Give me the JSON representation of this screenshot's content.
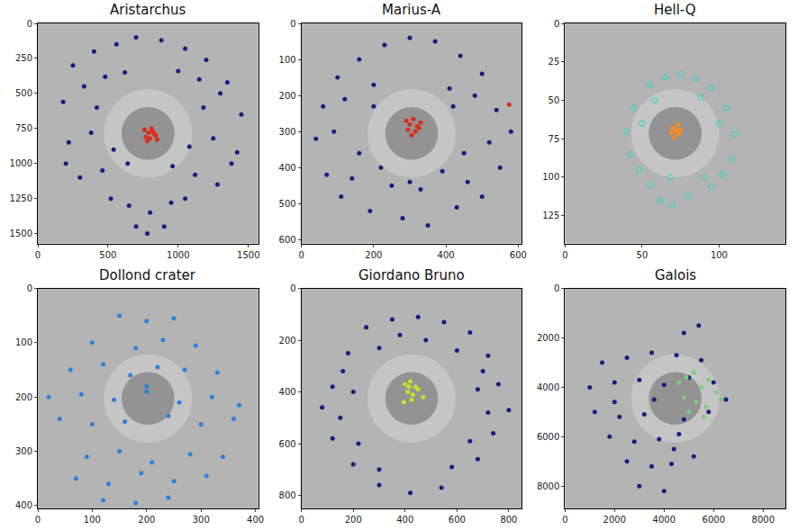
{
  "chart_data": [
    {
      "type": "scatter",
      "title": "Aristarchus",
      "xlim": [
        0,
        1570
      ],
      "ylim": [
        1570,
        0
      ],
      "xticks": [
        0,
        500,
        1000,
        1500
      ],
      "yticks": [
        0,
        250,
        500,
        750,
        1000,
        1250,
        1500
      ],
      "series": [
        {
          "color": "#1c1c80",
          "marker": "circle",
          "x": [
            250,
            400,
            560,
            700,
            880,
            1050,
            1200,
            1350,
            180,
            330,
            480,
            620,
            1000,
            1150,
            1300,
            1450,
            220,
            380,
            540,
            1080,
            1250,
            1420,
            300,
            460,
            640,
            960,
            1120,
            1280,
            650,
            800,
            950,
            520,
            1050,
            900,
            700,
            200,
            1380,
            420,
            1180,
            780
          ],
          "y": [
            300,
            200,
            150,
            100,
            120,
            180,
            260,
            420,
            560,
            450,
            380,
            350,
            340,
            400,
            500,
            650,
            850,
            780,
            900,
            880,
            820,
            920,
            1100,
            1050,
            1000,
            1020,
            1080,
            1150,
            1300,
            1350,
            1280,
            1250,
            1250,
            1450,
            1450,
            1000,
            1000,
            600,
            600,
            1500
          ]
        },
        {
          "color": "#e02a1f",
          "marker": "circle",
          "x": [
            760,
            790,
            820,
            840,
            800,
            770,
            810,
            850,
            780,
            830
          ],
          "y": [
            760,
            780,
            770,
            800,
            820,
            810,
            750,
            830,
            840,
            790
          ]
        }
      ]
    },
    {
      "type": "scatter",
      "title": "Marius-A",
      "xlim": [
        0,
        610
      ],
      "ylim": [
        610,
        0
      ],
      "xticks": [
        0,
        200,
        400,
        600
      ],
      "yticks": [
        0,
        100,
        200,
        300,
        400,
        500,
        600
      ],
      "series": [
        {
          "color": "#1c1c80",
          "marker": "circle",
          "x": [
            100,
            160,
            230,
            300,
            370,
            440,
            500,
            60,
            120,
            200,
            410,
            480,
            540,
            40,
            90,
            200,
            420,
            520,
            580,
            70,
            140,
            220,
            390,
            460,
            550,
            110,
            190,
            280,
            350,
            430,
            500,
            250,
            330,
            160,
            450,
            300
          ],
          "y": [
            150,
            100,
            60,
            40,
            50,
            90,
            140,
            230,
            210,
            170,
            180,
            200,
            240,
            320,
            300,
            230,
            230,
            330,
            300,
            420,
            430,
            400,
            410,
            440,
            400,
            480,
            520,
            540,
            560,
            510,
            480,
            450,
            460,
            360,
            360,
            440
          ]
        },
        {
          "color": "#e02a1f",
          "marker": "circle",
          "x": [
            290,
            300,
            310,
            320,
            330,
            295,
            315,
            325,
            305,
            575
          ],
          "y": [
            270,
            280,
            265,
            285,
            275,
            295,
            300,
            290,
            310,
            225
          ]
        }
      ]
    },
    {
      "type": "scatter",
      "title": "Hell-Q",
      "xlim": [
        0,
        143
      ],
      "ylim": [
        143,
        0
      ],
      "xticks": [
        0,
        50,
        100
      ],
      "yticks": [
        0,
        25,
        50,
        75,
        100,
        125
      ],
      "series": [
        {
          "color": "#3cd6be",
          "marker": "circle-open",
          "x": [
            55,
            65,
            75,
            85,
            95,
            45,
            105,
            40,
            110,
            42,
            108,
            48,
            102,
            55,
            95,
            62,
            70,
            80,
            90,
            50,
            100,
            58,
            88,
            68
          ],
          "y": [
            40,
            35,
            33,
            36,
            42,
            55,
            55,
            70,
            72,
            85,
            88,
            95,
            98,
            105,
            106,
            115,
            118,
            112,
            100,
            65,
            65,
            50,
            48,
            100
          ]
        },
        {
          "color": "#ff8a1a",
          "marker": "circle",
          "x": [
            70,
            72,
            74,
            71,
            73,
            69,
            75
          ],
          "y": [
            68,
            70,
            72,
            74,
            66,
            71,
            69
          ]
        }
      ]
    },
    {
      "type": "scatter",
      "title": "Dollond crater",
      "xlim": [
        0,
        405
      ],
      "ylim": [
        405,
        0
      ],
      "xticks": [
        0,
        100,
        200,
        300,
        400
      ],
      "yticks": [
        0,
        100,
        200,
        300,
        400
      ],
      "series": [
        {
          "color": "#2f80d8",
          "marker": "circle",
          "x": [
            150,
            200,
            250,
            100,
            180,
            230,
            290,
            60,
            120,
            170,
            220,
            270,
            330,
            20,
            80,
            140,
            200,
            260,
            320,
            370,
            40,
            100,
            160,
            240,
            300,
            360,
            90,
            150,
            210,
            280,
            340,
            70,
            130,
            190,
            250,
            310,
            120,
            180,
            240,
            200
          ],
          "y": [
            50,
            60,
            55,
            100,
            110,
            95,
            105,
            150,
            140,
            160,
            145,
            150,
            155,
            200,
            195,
            205,
            190,
            210,
            200,
            215,
            240,
            250,
            245,
            235,
            250,
            240,
            310,
            300,
            320,
            305,
            310,
            350,
            360,
            340,
            355,
            345,
            390,
            395,
            385,
            180
          ]
        }
      ]
    },
    {
      "type": "scatter",
      "title": "Giordano Bruno",
      "xlim": [
        0,
        850
      ],
      "ylim": [
        850,
        0
      ],
      "xticks": [
        0,
        200,
        400,
        600,
        800
      ],
      "yticks": [
        0,
        200,
        400,
        600,
        800
      ],
      "series": [
        {
          "color": "#1c1c80",
          "marker": "circle",
          "x": [
            250,
            350,
            450,
            550,
            650,
            180,
            300,
            600,
            720,
            120,
            200,
            680,
            760,
            80,
            150,
            720,
            800,
            120,
            220,
            650,
            740,
            200,
            300,
            580,
            680,
            300,
            420,
            540,
            380,
            480,
            160,
            700
          ],
          "y": [
            150,
            120,
            110,
            130,
            170,
            250,
            230,
            240,
            260,
            380,
            400,
            390,
            370,
            460,
            500,
            480,
            470,
            580,
            600,
            590,
            560,
            680,
            700,
            690,
            660,
            760,
            790,
            770,
            180,
            200,
            320,
            320
          ]
        },
        {
          "color": "#c5e02b",
          "marker": "circle",
          "x": [
            400,
            420,
            440,
            410,
            430,
            450,
            425,
            470,
            395,
            415
          ],
          "y": [
            370,
            360,
            380,
            400,
            410,
            390,
            430,
            420,
            440,
            380
          ]
        }
      ]
    },
    {
      "type": "scatter",
      "title": "Galois",
      "xlim": [
        0,
        8900
      ],
      "ylim": [
        8900,
        0
      ],
      "xticks": [
        0,
        2000,
        4000,
        6000,
        8000
      ],
      "yticks": [
        0,
        2000,
        4000,
        6000,
        8000
      ],
      "series": [
        {
          "color": "#1c1c80",
          "marker": "circle",
          "x": [
            1500,
            2500,
            3500,
            4500,
            5500,
            1000,
            2000,
            3000,
            4000,
            5000,
            6000,
            1200,
            2200,
            3200,
            4800,
            5800,
            1800,
            2800,
            3800,
            4600,
            2500,
            3500,
            4300,
            3000,
            4000,
            5200,
            6500,
            2000,
            3600,
            4400,
            4800,
            5400
          ],
          "y": [
            3000,
            2800,
            2600,
            2700,
            2900,
            4000,
            3800,
            3700,
            3900,
            3600,
            3800,
            5000,
            5200,
            5100,
            5300,
            5000,
            6000,
            6200,
            6100,
            5900,
            7000,
            7200,
            7100,
            8000,
            8200,
            6800,
            4500,
            4600,
            4500,
            6500,
            1800,
            1500
          ]
        },
        {
          "color": "#7ccd7c",
          "marker": "circle",
          "x": [
            4600,
            4900,
            5200,
            5500,
            5800,
            6100,
            4800,
            5300,
            5700,
            6300,
            5000,
            5600
          ],
          "y": [
            3800,
            3600,
            3400,
            4000,
            3700,
            4200,
            4400,
            4600,
            4800,
            4500,
            5000,
            5200
          ]
        }
      ]
    }
  ]
}
